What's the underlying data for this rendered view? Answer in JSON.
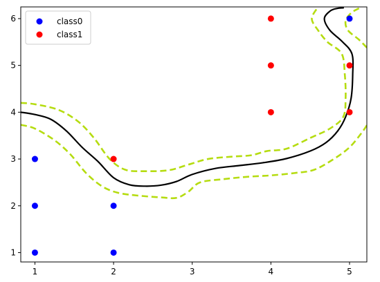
{
  "chart_data": {
    "type": "scatter",
    "title": "",
    "xlabel": "",
    "ylabel": "",
    "xlim": [
      0.82,
      5.22
    ],
    "ylim": [
      0.8,
      6.25
    ],
    "xticks": [
      1,
      2,
      3,
      4,
      5
    ],
    "yticks": [
      1,
      2,
      3,
      4,
      5,
      6
    ],
    "legend_position": "top-left",
    "grid": false,
    "series": [
      {
        "name": "class0",
        "color": "#0000ff",
        "points": [
          [
            1,
            1
          ],
          [
            1,
            2
          ],
          [
            1,
            3
          ],
          [
            2,
            1
          ],
          [
            2,
            2
          ],
          [
            5,
            6
          ]
        ]
      },
      {
        "name": "class1",
        "color": "#ff0000",
        "points": [
          [
            2,
            3
          ],
          [
            4,
            4
          ],
          [
            4,
            5
          ],
          [
            4,
            6
          ],
          [
            5,
            4
          ],
          [
            5,
            5
          ]
        ]
      }
    ],
    "decision_boundary": {
      "color": "#000000",
      "style": "solid",
      "points": [
        [
          0.82,
          4.0
        ],
        [
          1.0,
          3.95
        ],
        [
          1.2,
          3.85
        ],
        [
          1.4,
          3.6
        ],
        [
          1.6,
          3.25
        ],
        [
          1.8,
          2.95
        ],
        [
          2.0,
          2.6
        ],
        [
          2.2,
          2.45
        ],
        [
          2.4,
          2.42
        ],
        [
          2.6,
          2.44
        ],
        [
          2.8,
          2.52
        ],
        [
          3.0,
          2.67
        ],
        [
          3.3,
          2.8
        ],
        [
          3.6,
          2.86
        ],
        [
          3.9,
          2.92
        ],
        [
          4.2,
          3.01
        ],
        [
          4.5,
          3.17
        ],
        [
          4.7,
          3.35
        ],
        [
          4.85,
          3.6
        ],
        [
          4.95,
          3.9
        ],
        [
          5.02,
          4.3
        ],
        [
          5.04,
          4.8
        ],
        [
          5.03,
          5.25
        ],
        [
          4.9,
          5.52
        ],
        [
          4.75,
          5.75
        ],
        [
          4.68,
          6.0
        ],
        [
          4.76,
          6.17
        ],
        [
          4.85,
          6.22
        ],
        [
          4.92,
          6.23
        ]
      ]
    },
    "margin_upper": {
      "color": "#b5dc10",
      "style": "dashed",
      "points": [
        [
          0.82,
          4.2
        ],
        [
          1.0,
          4.17
        ],
        [
          1.3,
          4.05
        ],
        [
          1.55,
          3.8
        ],
        [
          1.75,
          3.45
        ],
        [
          1.95,
          3.0
        ],
        [
          2.15,
          2.77
        ],
        [
          2.4,
          2.74
        ],
        [
          2.7,
          2.76
        ],
        [
          2.95,
          2.88
        ],
        [
          3.2,
          3.0
        ],
        [
          3.5,
          3.05
        ],
        [
          3.75,
          3.08
        ],
        [
          3.95,
          3.17
        ],
        [
          4.2,
          3.22
        ],
        [
          4.5,
          3.45
        ],
        [
          4.75,
          3.65
        ],
        [
          4.92,
          3.9
        ],
        [
          4.95,
          4.3
        ],
        [
          4.94,
          4.8
        ],
        [
          4.9,
          5.25
        ],
        [
          4.72,
          5.5
        ],
        [
          4.6,
          5.75
        ],
        [
          4.52,
          6.0
        ],
        [
          4.6,
          6.25
        ]
      ]
    },
    "margin_lower": {
      "color": "#b5dc10",
      "style": "dashed",
      "points": [
        [
          0.82,
          3.73
        ],
        [
          1.0,
          3.65
        ],
        [
          1.25,
          3.4
        ],
        [
          1.45,
          3.1
        ],
        [
          1.65,
          2.7
        ],
        [
          1.85,
          2.42
        ],
        [
          2.05,
          2.28
        ],
        [
          2.3,
          2.22
        ],
        [
          2.6,
          2.18
        ],
        [
          2.8,
          2.17
        ],
        [
          2.95,
          2.3
        ],
        [
          3.1,
          2.5
        ],
        [
          3.4,
          2.57
        ],
        [
          3.7,
          2.62
        ],
        [
          4.0,
          2.65
        ],
        [
          4.3,
          2.7
        ],
        [
          4.55,
          2.77
        ],
        [
          4.8,
          3.0
        ],
        [
          5.0,
          3.25
        ],
        [
          5.15,
          3.55
        ],
        [
          5.22,
          3.72
        ]
      ]
    },
    "margin_upper_right": {
      "color": "#b5dc10",
      "style": "dashed",
      "points": [
        [
          5.22,
          5.38
        ],
        [
          5.12,
          5.55
        ],
        [
          4.98,
          5.75
        ],
        [
          4.95,
          5.95
        ],
        [
          5.02,
          6.12
        ],
        [
          5.12,
          6.22
        ]
      ]
    }
  }
}
